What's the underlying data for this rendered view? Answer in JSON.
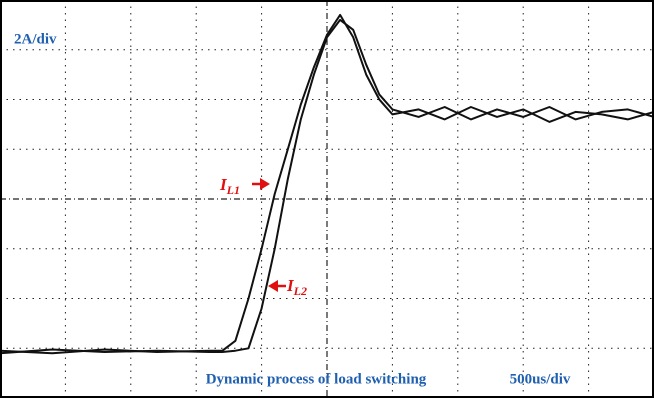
{
  "chart_data": {
    "type": "line",
    "title": "Dynamic process of load switching",
    "y_scale_label": "2A/div",
    "x_scale_label": "500us/div",
    "x": [
      0,
      400,
      800,
      1200,
      1600,
      1700,
      1800,
      1900,
      2000,
      2100,
      2200,
      2300,
      2400,
      2500,
      2600,
      2700,
      2800,
      2900,
      3000,
      3200,
      3400,
      3600,
      3800,
      4000,
      4200,
      4400,
      4600,
      4800,
      5000
    ],
    "series": [
      {
        "color": "#111111",
        "values": [
          1.9,
          1.8,
          1.95,
          1.85,
          1.9,
          1.9,
          2.3,
          4.0,
          6.0,
          8.2,
          10.0,
          11.8,
          13.3,
          14.6,
          15.4,
          14.5,
          13.0,
          12.0,
          11.4,
          11.6,
          11.2,
          11.7,
          11.3,
          11.6,
          11.1,
          11.5,
          11.4,
          11.2,
          11.5
        ]
      },
      {
        "color": "#111111",
        "values": [
          1.8,
          1.95,
          1.85,
          1.9,
          1.85,
          1.85,
          1.9,
          2.0,
          3.6,
          6.0,
          8.8,
          11.2,
          13.0,
          14.5,
          15.2,
          14.8,
          13.4,
          12.2,
          11.6,
          11.3,
          11.7,
          11.2,
          11.6,
          11.3,
          11.7,
          11.2,
          11.5,
          11.6,
          11.3
        ]
      }
    ],
    "annotations": [
      {
        "text": "I",
        "sub": "L1"
      },
      {
        "text": "I",
        "sub": "L2"
      }
    ],
    "xlim": [
      0,
      5000
    ],
    "ylim": [
      0,
      16
    ],
    "xticks": [
      500,
      1000,
      1500,
      2000,
      2500,
      3000,
      3500,
      4000,
      4500
    ],
    "yticks": [
      2,
      4,
      6,
      8,
      10,
      12,
      14
    ],
    "grid": true
  }
}
